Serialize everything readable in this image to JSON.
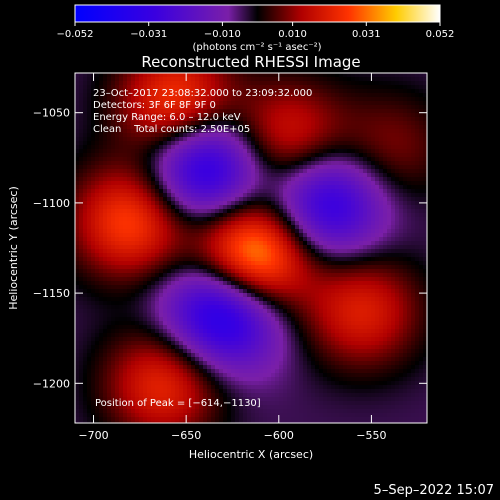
{
  "chart_data": {
    "type": "heatmap",
    "title": "Reconstructed RHESSI Image",
    "xlabel": "Heliocentric X (arcsec)",
    "ylabel": "Heliocentric Y (arcsec)",
    "xlim": [
      -710,
      -520
    ],
    "ylim": [
      -1222,
      -1028
    ],
    "x_ticks": [
      -700,
      -650,
      -600,
      -550
    ],
    "x_tick_labels": [
      "−700",
      "−650",
      "−600",
      "−550"
    ],
    "y_ticks": [
      -1050,
      -1100,
      -1150,
      -1200
    ],
    "y_tick_labels": [
      "−1050",
      "−1100",
      "−1150",
      "−1200"
    ],
    "colorbar": {
      "min": -0.052,
      "max": 0.052,
      "ticks": [
        -0.052,
        -0.031,
        -0.01,
        0.01,
        0.031,
        0.052
      ],
      "tick_labels": [
        "−0.052",
        "−0.031",
        "−0.010",
        "0.010",
        "0.031",
        "0.052"
      ],
      "unit_label": "(photons cm⁻² s⁻¹ asec⁻²)"
    },
    "annotations": [
      "23–Oct–2017 23:08:32.000 to 23:09:32.000",
      "Detectors: 3F 6F 8F 9F 0",
      "Energy Range: 6.0 – 12.0 keV",
      "Clean    Total counts: 2.50E+05"
    ],
    "peak_label": "Position of Peak = [−614,−1130]",
    "blobs": [
      {
        "x": -614,
        "y": -1130,
        "v": 0.052
      },
      {
        "x": -630,
        "y": -1160,
        "v": -0.045
      },
      {
        "x": -640,
        "y": -1080,
        "v": -0.04
      },
      {
        "x": -575,
        "y": -1100,
        "v": -0.035
      },
      {
        "x": -662,
        "y": -1200,
        "v": 0.028
      },
      {
        "x": -680,
        "y": -1110,
        "v": 0.033
      },
      {
        "x": -655,
        "y": -1045,
        "v": 0.034
      },
      {
        "x": -595,
        "y": -1065,
        "v": 0.026
      },
      {
        "x": -555,
        "y": -1160,
        "v": 0.025
      },
      {
        "x": -540,
        "y": -1070,
        "v": 0.014
      }
    ]
  },
  "footer": {
    "timestamp": "5–Sep–2022 15:07"
  }
}
